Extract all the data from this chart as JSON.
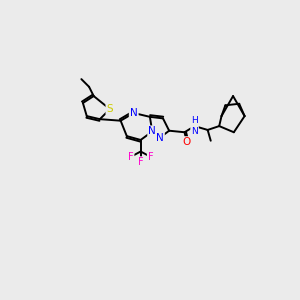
{
  "background_color": "#ebebeb",
  "bond_color": "#000000",
  "atom_colors": {
    "S": "#cccc00",
    "N": "#0000ff",
    "O": "#ff0000",
    "F": "#ff00cc",
    "H": "#008080",
    "C": "#000000"
  },
  "figsize": [
    3.0,
    3.0
  ],
  "dpi": 100
}
